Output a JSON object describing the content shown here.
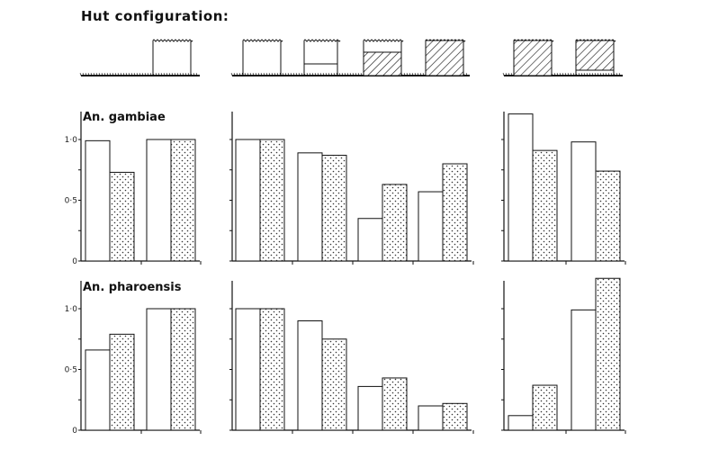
{
  "figure": {
    "title": "Hut configuration:"
  },
  "rows": [
    {
      "label": "An. gambiae"
    },
    {
      "label": "An. pharoensis"
    }
  ],
  "y_ticks": [
    "1·0",
    "0·5",
    "0"
  ],
  "colors": {
    "ink": "#111111",
    "dots": "#333333",
    "paper": "#ffffff"
  },
  "chart_data": [
    {
      "type": "bar",
      "title": "An. gambiae",
      "ylim": [
        0,
        1.2
      ],
      "series_styles": [
        "open",
        "stippled"
      ],
      "panels": [
        {
          "groups": [
            [
              0.99,
              0.73
            ],
            [
              1.0,
              1.0
            ]
          ]
        },
        {
          "groups": [
            [
              1.0,
              1.0
            ],
            [
              0.89,
              0.87
            ],
            [
              0.35,
              0.63
            ],
            [
              0.57,
              0.8
            ]
          ]
        },
        {
          "groups": [
            [
              1.21,
              0.91
            ],
            [
              0.98,
              0.74
            ]
          ]
        }
      ]
    },
    {
      "type": "bar",
      "title": "An. pharoensis",
      "ylim": [
        0,
        1.2
      ],
      "series_styles": [
        "open",
        "stippled"
      ],
      "panels": [
        {
          "groups": [
            [
              0.66,
              0.79
            ],
            [
              1.0,
              1.0
            ]
          ]
        },
        {
          "groups": [
            [
              1.0,
              1.0
            ],
            [
              0.9,
              0.75
            ],
            [
              0.36,
              0.43
            ],
            [
              0.2,
              0.22
            ]
          ]
        },
        {
          "groups": [
            [
              0.12,
              0.37
            ],
            [
              0.99,
              1.25
            ]
          ]
        }
      ]
    }
  ]
}
